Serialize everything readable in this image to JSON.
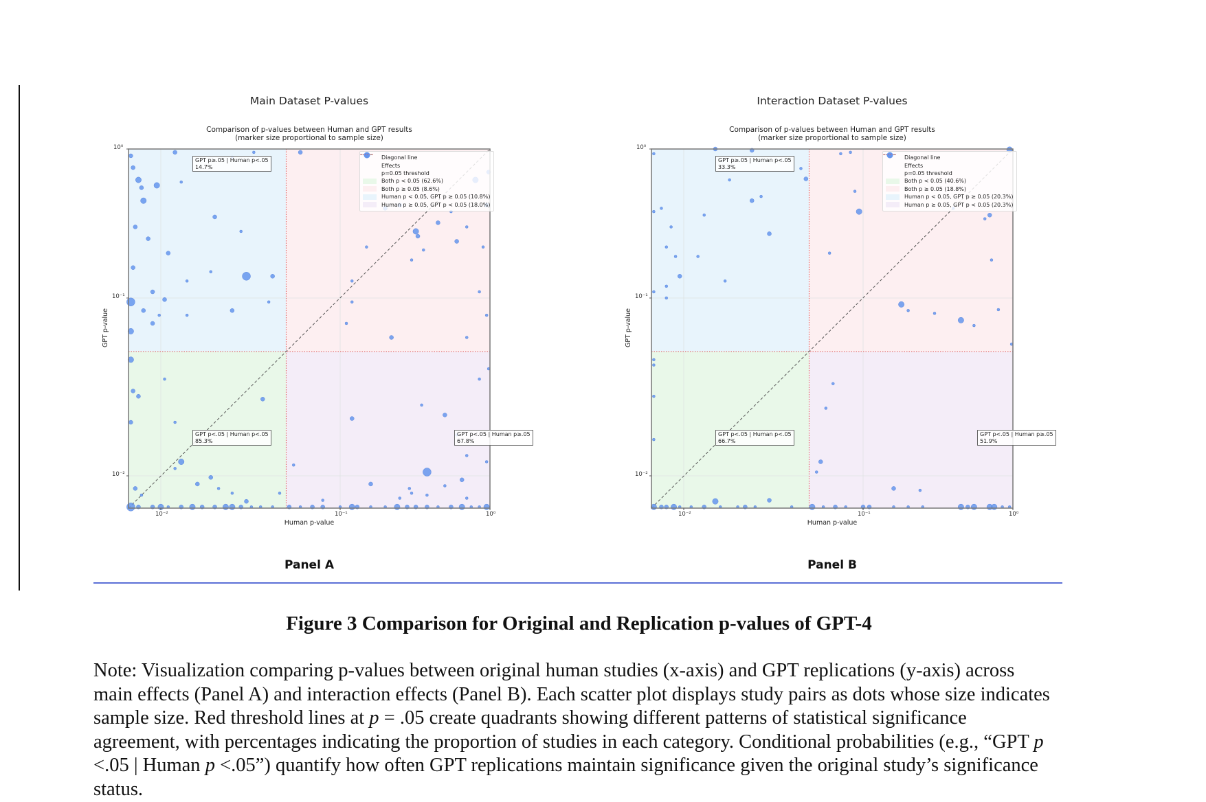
{
  "colors": {
    "dot": "#6495ED",
    "dot_stroke": "#4a78d8",
    "both_sig": "#e9f8e9",
    "both_nonsig": "#fdeff1",
    "human_sig_gpt_nonsig": "#e8f4fc",
    "human_nonsig_gpt_sig": "#f4edf8",
    "threshold": "#e05555",
    "diagonal": "#555555",
    "rule": "#5b6fd6"
  },
  "panels": [
    {
      "panel_label": "Panel A",
      "title": "Main Dataset P-values",
      "subtitle_line1": "Comparison of p-values between Human and GPT results",
      "subtitle_line2": "(marker size proportional to sample size)",
      "annotations": {
        "top_left": {
          "line1": "GPT p≥.05 | Human p<.05",
          "line2": "14.7%"
        },
        "bottom_left": {
          "line1": "GPT p<.05 | Human p<.05",
          "line2": "85.3%"
        },
        "bottom_right": {
          "line1": "GPT p<.05 | Human p≥.05",
          "line2": "67.8%"
        }
      },
      "legend": [
        {
          "icon": "dashed-line",
          "label": "Diagonal line"
        },
        {
          "icon": "dot",
          "label": "Effects"
        },
        {
          "icon": "dotted-red-line",
          "label": "p=0.05 threshold"
        },
        {
          "icon": "green-patch",
          "label": "Both p < 0.05 (62.6%)"
        },
        {
          "icon": "pink-patch",
          "label": "Both p ≥ 0.05 (8.6%)"
        },
        {
          "icon": "blue-patch",
          "label": "Human p < 0.05, GPT p ≥ 0.05 (10.8%)"
        },
        {
          "icon": "purple-patch",
          "label": "Human p ≥ 0.05, GPT p < 0.05 (18.0%)"
        }
      ]
    },
    {
      "panel_label": "Panel B",
      "title": "Interaction Dataset P-values",
      "subtitle_line1": "Comparison of p-values between Human and GPT results",
      "subtitle_line2": "(marker size proportional to sample size)",
      "annotations": {
        "top_left": {
          "line1": "GPT p≥.05 | Human p<.05",
          "line2": "33.3%"
        },
        "bottom_left": {
          "line1": "GPT p<.05 | Human p<.05",
          "line2": "66.7%"
        },
        "bottom_right": {
          "line1": "GPT p<.05 | Human p≥.05",
          "line2": "51.9%"
        }
      },
      "legend": [
        {
          "icon": "dashed-line",
          "label": "Diagonal line"
        },
        {
          "icon": "dot",
          "label": "Effects"
        },
        {
          "icon": "dotted-red-line",
          "label": "p=0.05 threshold"
        },
        {
          "icon": "green-patch",
          "label": "Both p < 0.05 (40.6%)"
        },
        {
          "icon": "pink-patch",
          "label": "Both p ≥ 0.05 (18.8%)"
        },
        {
          "icon": "blue-patch",
          "label": "Human p < 0.05, GPT p ≥ 0.05 (20.3%)"
        },
        {
          "icon": "purple-patch",
          "label": "Human p ≥ 0.05, GPT p < 0.05 (20.3%)"
        }
      ]
    }
  ],
  "chart_data": [
    {
      "type": "scatter",
      "title": "Main Dataset P-values",
      "subtitle": "Comparison of p-values between Human and GPT results (marker size proportional to sample size)",
      "xlabel": "Human p-value",
      "ylabel": "GPT p-value",
      "xscale": "log",
      "yscale": "log",
      "xlim": [
        0.0066,
        1
      ],
      "ylim": [
        0.0066,
        1
      ],
      "xticks": [
        "10⁻²",
        "10⁻¹",
        "10⁰"
      ],
      "yticks": [
        "10⁰",
        "10⁻¹",
        "10⁻²"
      ],
      "threshold": 0.05,
      "grid": true,
      "legend_position": "top-right",
      "points_human_gpt_size": [
        [
          0.0068,
          0.9,
          2
        ],
        [
          0.007,
          0.75,
          2
        ],
        [
          0.0075,
          0.62,
          3
        ],
        [
          0.0078,
          0.55,
          2
        ],
        [
          0.008,
          0.45,
          3
        ],
        [
          0.0072,
          0.3,
          2
        ],
        [
          0.0085,
          0.25,
          2
        ],
        [
          0.007,
          0.16,
          2
        ],
        [
          0.009,
          0.11,
          2
        ],
        [
          0.0068,
          0.095,
          4
        ],
        [
          0.008,
          0.085,
          2
        ],
        [
          0.009,
          0.072,
          2
        ],
        [
          0.0068,
          0.065,
          3
        ],
        [
          0.0105,
          0.098,
          2
        ],
        [
          0.0098,
          0.08,
          1
        ],
        [
          0.012,
          0.95,
          2
        ],
        [
          0.013,
          0.6,
          1
        ],
        [
          0.011,
          0.2,
          2
        ],
        [
          0.014,
          0.13,
          1
        ],
        [
          0.02,
          0.35,
          2
        ],
        [
          0.019,
          0.15,
          1
        ],
        [
          0.025,
          0.88,
          1
        ],
        [
          0.028,
          0.28,
          1
        ],
        [
          0.03,
          0.14,
          4
        ],
        [
          0.025,
          0.085,
          2
        ],
        [
          0.042,
          0.14,
          2
        ],
        [
          0.04,
          0.095,
          1
        ],
        [
          0.033,
          0.95,
          1
        ],
        [
          0.014,
          0.08,
          1
        ],
        [
          0.0095,
          0.57,
          3
        ],
        [
          0.0068,
          0.045,
          3
        ],
        [
          0.007,
          0.03,
          2
        ],
        [
          0.0075,
          0.028,
          2
        ],
        [
          0.0105,
          0.035,
          1
        ],
        [
          0.012,
          0.02,
          1
        ],
        [
          0.0068,
          0.02,
          2
        ],
        [
          0.013,
          0.012,
          3
        ],
        [
          0.012,
          0.011,
          1
        ],
        [
          0.016,
          0.009,
          2
        ],
        [
          0.019,
          0.0098,
          2
        ],
        [
          0.021,
          0.0085,
          1
        ],
        [
          0.025,
          0.008,
          1
        ],
        [
          0.037,
          0.027,
          2
        ],
        [
          0.046,
          0.008,
          1
        ],
        [
          0.03,
          0.0072,
          2
        ],
        [
          0.0072,
          0.0085,
          2
        ],
        [
          0.0078,
          0.0078,
          1
        ],
        [
          0.06,
          0.95,
          2
        ],
        [
          0.16,
          0.55,
          1
        ],
        [
          0.25,
          0.42,
          2
        ],
        [
          0.32,
          0.28,
          3
        ],
        [
          0.33,
          0.26,
          2
        ],
        [
          0.36,
          0.21,
          1
        ],
        [
          0.45,
          0.32,
          2
        ],
        [
          0.55,
          0.38,
          1
        ],
        [
          0.6,
          0.24,
          2
        ],
        [
          0.7,
          0.3,
          1
        ],
        [
          0.8,
          0.62,
          3
        ],
        [
          0.9,
          0.22,
          1
        ],
        [
          0.95,
          0.42,
          2
        ],
        [
          0.12,
          0.13,
          1
        ],
        [
          0.15,
          0.22,
          1
        ],
        [
          0.3,
          0.18,
          1
        ],
        [
          0.98,
          0.7,
          2
        ],
        [
          0.85,
          0.11,
          1
        ],
        [
          0.12,
          0.095,
          1
        ],
        [
          0.11,
          0.072,
          1
        ],
        [
          0.22,
          0.06,
          2
        ],
        [
          0.7,
          0.06,
          1
        ],
        [
          0.95,
          0.08,
          1
        ],
        [
          0.2,
          0.4,
          2
        ],
        [
          0.35,
          0.025,
          1
        ],
        [
          0.12,
          0.021,
          2
        ],
        [
          0.5,
          0.022,
          2
        ],
        [
          0.6,
          0.017,
          1
        ],
        [
          0.7,
          0.013,
          1
        ],
        [
          0.38,
          0.0105,
          4
        ],
        [
          0.65,
          0.0095,
          2
        ],
        [
          0.16,
          0.009,
          2
        ],
        [
          0.29,
          0.0085,
          1
        ],
        [
          0.5,
          0.0088,
          1
        ],
        [
          0.98,
          0.04,
          1
        ],
        [
          0.85,
          0.035,
          1
        ],
        [
          0.95,
          0.012,
          1
        ],
        [
          0.055,
          0.0115,
          1
        ],
        [
          0.08,
          0.0073,
          1
        ],
        [
          0.25,
          0.0075,
          1
        ],
        [
          0.3,
          0.008,
          1
        ],
        [
          0.38,
          0.0078,
          1
        ],
        [
          0.7,
          0.0075,
          1
        ],
        [
          0.0068,
          0.0067,
          4
        ],
        [
          0.0075,
          0.0067,
          2
        ],
        [
          0.009,
          0.0067,
          2
        ],
        [
          0.01,
          0.0067,
          3
        ],
        [
          0.011,
          0.0067,
          1
        ],
        [
          0.013,
          0.0067,
          2
        ],
        [
          0.015,
          0.0067,
          3
        ],
        [
          0.017,
          0.0067,
          2
        ],
        [
          0.02,
          0.0067,
          2
        ],
        [
          0.023,
          0.0067,
          3
        ],
        [
          0.025,
          0.0067,
          3
        ],
        [
          0.028,
          0.0067,
          2
        ],
        [
          0.032,
          0.0067,
          1
        ],
        [
          0.036,
          0.0067,
          1
        ],
        [
          0.042,
          0.0067,
          1
        ],
        [
          0.052,
          0.0067,
          2
        ],
        [
          0.06,
          0.0067,
          1
        ],
        [
          0.07,
          0.0067,
          2
        ],
        [
          0.08,
          0.0067,
          2
        ],
        [
          0.1,
          0.0067,
          1
        ],
        [
          0.12,
          0.0067,
          3
        ],
        [
          0.13,
          0.0067,
          2
        ],
        [
          0.16,
          0.0067,
          1
        ],
        [
          0.2,
          0.0067,
          1
        ],
        [
          0.24,
          0.0067,
          3
        ],
        [
          0.28,
          0.0067,
          2
        ],
        [
          0.32,
          0.0067,
          2
        ],
        [
          0.38,
          0.0067,
          2
        ],
        [
          0.45,
          0.0067,
          1
        ],
        [
          0.55,
          0.0067,
          2
        ],
        [
          0.65,
          0.0067,
          3
        ],
        [
          0.75,
          0.0067,
          1
        ],
        [
          0.85,
          0.0067,
          1
        ],
        [
          0.95,
          0.0067,
          3
        ]
      ]
    },
    {
      "type": "scatter",
      "title": "Interaction Dataset P-values",
      "subtitle": "Comparison of p-values between Human and GPT results (marker size proportional to sample size)",
      "xlabel": "Human p-value",
      "ylabel": "GPT p-value",
      "xscale": "log",
      "yscale": "log",
      "xlim": [
        0.0066,
        1
      ],
      "ylim": [
        0.0066,
        1
      ],
      "xticks": [
        "10⁻²",
        "10⁻¹",
        "10⁰"
      ],
      "yticks": [
        "10⁰",
        "10⁻¹",
        "10⁻²"
      ],
      "threshold": 0.05,
      "grid": true,
      "legend_position": "top-right",
      "points_human_gpt_size": [
        [
          0.0068,
          0.93,
          1
        ],
        [
          0.0068,
          0.38,
          1
        ],
        [
          0.0068,
          0.11,
          1
        ],
        [
          0.0075,
          0.4,
          1
        ],
        [
          0.0085,
          0.3,
          1
        ],
        [
          0.009,
          0.19,
          1
        ],
        [
          0.008,
          0.22,
          1
        ],
        [
          0.0095,
          0.14,
          2
        ],
        [
          0.008,
          0.12,
          1
        ],
        [
          0.008,
          0.1,
          1
        ],
        [
          0.012,
          0.19,
          1
        ],
        [
          0.013,
          0.36,
          1
        ],
        [
          0.015,
          1.0,
          2
        ],
        [
          0.018,
          0.62,
          1
        ],
        [
          0.017,
          0.13,
          1
        ],
        [
          0.024,
          0.45,
          2
        ],
        [
          0.024,
          0.98,
          2
        ],
        [
          0.027,
          0.48,
          1
        ],
        [
          0.03,
          0.27,
          2
        ],
        [
          0.045,
          0.74,
          1
        ],
        [
          0.048,
          0.63,
          2
        ],
        [
          0.0068,
          0.045,
          1
        ],
        [
          0.0068,
          0.042,
          1
        ],
        [
          0.0068,
          0.028,
          1
        ],
        [
          0.0068,
          0.016,
          1
        ],
        [
          0.015,
          0.0072,
          3
        ],
        [
          0.03,
          0.0073,
          2
        ],
        [
          0.075,
          0.93,
          1
        ],
        [
          0.085,
          0.95,
          1
        ],
        [
          0.09,
          0.52,
          1
        ],
        [
          0.095,
          0.38,
          3
        ],
        [
          0.065,
          0.2,
          1
        ],
        [
          0.4,
          0.4,
          1
        ],
        [
          0.7,
          0.36,
          2
        ],
        [
          0.65,
          0.34,
          1
        ],
        [
          0.72,
          0.18,
          1
        ],
        [
          0.95,
          0.99,
          3
        ],
        [
          0.18,
          0.092,
          3
        ],
        [
          0.2,
          0.085,
          1
        ],
        [
          0.3,
          0.082,
          1
        ],
        [
          0.45,
          0.075,
          3
        ],
        [
          0.55,
          0.07,
          1
        ],
        [
          0.8,
          0.086,
          1
        ],
        [
          0.98,
          0.055,
          1
        ],
        [
          0.058,
          0.012,
          2
        ],
        [
          0.062,
          0.024,
          1
        ],
        [
          0.068,
          0.033,
          1
        ],
        [
          0.16,
          0.0085,
          2
        ],
        [
          0.24,
          0.0083,
          1
        ],
        [
          0.055,
          0.0105,
          1
        ],
        [
          0.0068,
          0.0067,
          3
        ],
        [
          0.0075,
          0.0067,
          2
        ],
        [
          0.008,
          0.0067,
          2
        ],
        [
          0.0088,
          0.0067,
          3
        ],
        [
          0.0095,
          0.0067,
          1
        ],
        [
          0.011,
          0.0067,
          1
        ],
        [
          0.013,
          0.0067,
          2
        ],
        [
          0.016,
          0.0067,
          1
        ],
        [
          0.02,
          0.0067,
          1
        ],
        [
          0.022,
          0.0067,
          2
        ],
        [
          0.025,
          0.0067,
          1
        ],
        [
          0.04,
          0.0067,
          1
        ],
        [
          0.052,
          0.0067,
          3
        ],
        [
          0.06,
          0.0067,
          1
        ],
        [
          0.07,
          0.0067,
          2
        ],
        [
          0.08,
          0.0067,
          1
        ],
        [
          0.1,
          0.0067,
          2
        ],
        [
          0.11,
          0.0067,
          2
        ],
        [
          0.16,
          0.0067,
          1
        ],
        [
          0.2,
          0.0067,
          1
        ],
        [
          0.25,
          0.0067,
          1
        ],
        [
          0.45,
          0.0067,
          3
        ],
        [
          0.5,
          0.0067,
          2
        ],
        [
          0.55,
          0.0067,
          3
        ],
        [
          0.7,
          0.0067,
          3
        ],
        [
          0.75,
          0.0067,
          3
        ],
        [
          0.85,
          0.0067,
          1
        ],
        [
          0.95,
          0.0067,
          1
        ]
      ]
    }
  ],
  "caption": "Figure 3 Comparison for Original and Replication p-values of GPT-4",
  "note": {
    "segments": [
      {
        "text": "Note: Visualization comparing p-values between original human studies (x-axis) and GPT replications (y-axis) across main effects (Panel A) and interaction effects (Panel B). Each scatter plot displays study pairs as dots whose size indicates sample size. Red threshold lines at ",
        "italic": false
      },
      {
        "text": "p",
        "italic": true
      },
      {
        "text": " = .05 create quadrants showing different patterns of statistical significance agreement, with percentages indicating the proportion of studies in each category. Conditional probabilities (e.g., “GPT ",
        "italic": false
      },
      {
        "text": "p",
        "italic": true
      },
      {
        "text": " <.05 | Human ",
        "italic": false
      },
      {
        "text": "p",
        "italic": true
      },
      {
        "text": " <.05”) quantify how often GPT replications maintain significance given the original study’s significance status.",
        "italic": false
      }
    ]
  }
}
